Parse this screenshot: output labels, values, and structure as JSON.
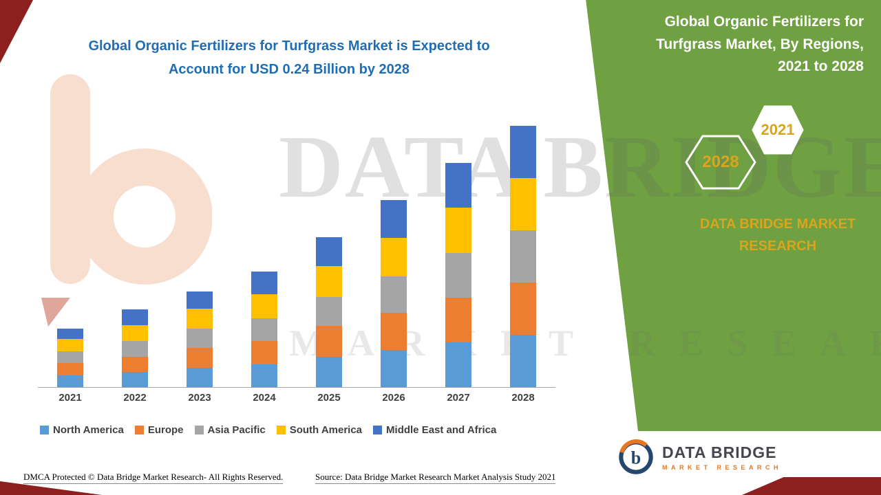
{
  "page": {
    "main_title_line1": "Global Organic Fertilizers for Turfgrass Market is Expected to",
    "main_title_line2": "Account for USD 0.24 Billion by 2028"
  },
  "side_panel": {
    "title_line1": "Global Organic Fertilizers for",
    "title_line2": "Turfgrass Market, By Regions,",
    "title_line3": "2021 to 2028",
    "hexagon_left_label": "2028",
    "hexagon_right_label": "2021",
    "brand_line1": "DATA BRIDGE MARKET",
    "brand_line2": "RESEARCH",
    "background_color": "#6FA041",
    "accent_text_color": "#D9A41E"
  },
  "watermark": {
    "line1": "DATA BRIDGE",
    "line2": "MARKET RESEARCH"
  },
  "chart_data": {
    "type": "bar",
    "stacked": true,
    "title": "Global Organic Fertilizers for Turfgrass Market is Expected to Account for USD 0.24 Billion by 2028",
    "unit": "USD Billion",
    "categories": [
      "2021",
      "2022",
      "2023",
      "2024",
      "2025",
      "2026",
      "2027",
      "2028"
    ],
    "series": [
      {
        "name": "North America",
        "color": "#5B9BD5",
        "values": [
          0.011,
          0.014,
          0.018,
          0.021,
          0.028,
          0.034,
          0.041,
          0.048
        ]
      },
      {
        "name": "Europe",
        "color": "#ED7D31",
        "values": [
          0.011,
          0.014,
          0.018,
          0.021,
          0.028,
          0.034,
          0.041,
          0.048
        ]
      },
      {
        "name": "Asia Pacific",
        "color": "#A5A5A5",
        "values": [
          0.011,
          0.014,
          0.018,
          0.021,
          0.027,
          0.034,
          0.041,
          0.048
        ]
      },
      {
        "name": "South America",
        "color": "#FFC000",
        "values": [
          0.011,
          0.015,
          0.018,
          0.022,
          0.028,
          0.035,
          0.042,
          0.048
        ]
      },
      {
        "name": "Middle East and Africa",
        "color": "#4472C4",
        "values": [
          0.01,
          0.014,
          0.016,
          0.021,
          0.027,
          0.035,
          0.041,
          0.048
        ]
      }
    ],
    "totals": [
      0.054,
      0.071,
      0.088,
      0.106,
      0.138,
      0.172,
      0.206,
      0.24
    ],
    "ylim": [
      0,
      0.24
    ],
    "grid": false,
    "legend_position": "bottom"
  },
  "footer": {
    "dmca_text": "DMCA Protected © Data Bridge Market Research- All Rights Reserved.",
    "source_text": "Source: Data Bridge Market Research Market Analysis Study 2021"
  },
  "logo": {
    "name": "DATA BRIDGE",
    "subtitle": "MARKET RESEARCH"
  }
}
